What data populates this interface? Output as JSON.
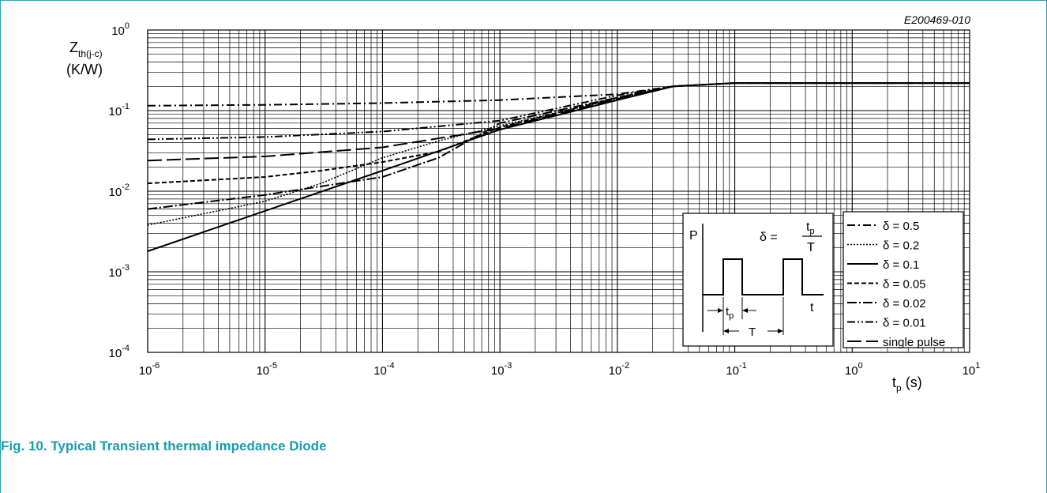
{
  "caption": "Fig. 10. Typical Transient thermal impedance Diode",
  "accent_color": "#1a9bb0",
  "chart_data": {
    "type": "line",
    "figure_id": "E200469-010",
    "ylabel_main": "Z",
    "ylabel_sub": "th(j-c)",
    "yunit": "(K/W)",
    "xlabel_main": "t",
    "xlabel_sub": "p",
    "xunit": " (s)",
    "xscale": "log",
    "yscale": "log",
    "xlim": [
      1e-06,
      10
    ],
    "ylim": [
      0.0001,
      1
    ],
    "grid": true,
    "x_ticks": [
      {
        "base": "10",
        "exp": "-6"
      },
      {
        "base": "10",
        "exp": "-5"
      },
      {
        "base": "10",
        "exp": "-4"
      },
      {
        "base": "10",
        "exp": "-3"
      },
      {
        "base": "10",
        "exp": "-2"
      },
      {
        "base": "10",
        "exp": "-1"
      },
      {
        "base": "10",
        "exp": "0"
      },
      {
        "base": "10",
        "exp": "1"
      }
    ],
    "y_ticks": [
      {
        "base": "10",
        "exp": "-4"
      },
      {
        "base": "10",
        "exp": "-3"
      },
      {
        "base": "10",
        "exp": "-2"
      },
      {
        "base": "10",
        "exp": "-1"
      },
      {
        "base": "10",
        "exp": "0"
      }
    ],
    "legend_position": "bottom-right",
    "series": [
      {
        "name": "δ = 0.5",
        "dash": "10,4,2,4",
        "width": 2,
        "x": [
          1e-06,
          1e-05,
          0.0001,
          0.001,
          0.01,
          0.03,
          0.1,
          1,
          10
        ],
        "y": [
          0.115,
          0.118,
          0.124,
          0.135,
          0.16,
          0.2,
          0.22,
          0.22,
          0.22
        ]
      },
      {
        "name": "δ = 0.2",
        "dash": "2,2",
        "width": 1.6,
        "x": [
          1e-06,
          1e-05,
          3e-05,
          0.0001,
          0.0003,
          0.001,
          0.01,
          0.03,
          0.1,
          1,
          10
        ],
        "y": [
          0.0038,
          0.0075,
          0.0125,
          0.026,
          0.042,
          0.065,
          0.14,
          0.2,
          0.22,
          0.22,
          0.22
        ]
      },
      {
        "name": "δ = 0.1",
        "dash": "",
        "width": 2,
        "x": [
          1e-06,
          1e-05,
          0.0001,
          0.001,
          0.01,
          0.03,
          0.1,
          1,
          10
        ],
        "y": [
          0.0018,
          0.0057,
          0.018,
          0.058,
          0.135,
          0.2,
          0.22,
          0.22,
          0.22
        ]
      },
      {
        "name": "δ = 0.05",
        "dash": "6,3",
        "width": 2,
        "x": [
          1e-06,
          1e-05,
          3e-05,
          0.0001,
          0.0003,
          0.001,
          0.01,
          0.03,
          0.1,
          1,
          10
        ],
        "y": [
          0.0125,
          0.015,
          0.018,
          0.023,
          0.031,
          0.062,
          0.145,
          0.2,
          0.22,
          0.22,
          0.22
        ]
      },
      {
        "name": "δ = 0.02",
        "dash": "12,3,2,3",
        "width": 2,
        "x": [
          1e-06,
          1e-05,
          0.0001,
          0.0003,
          0.001,
          0.01,
          0.03,
          0.1,
          1,
          10
        ],
        "y": [
          0.006,
          0.009,
          0.015,
          0.026,
          0.07,
          0.145,
          0.2,
          0.22,
          0.22,
          0.22
        ]
      },
      {
        "name": "δ = 0.01",
        "dash": "10,3,2,3,2,3",
        "width": 2,
        "x": [
          1e-06,
          1e-05,
          0.0001,
          0.001,
          0.01,
          0.03,
          0.1,
          1,
          10
        ],
        "y": [
          0.044,
          0.047,
          0.055,
          0.075,
          0.155,
          0.2,
          0.22,
          0.22,
          0.22
        ]
      },
      {
        "name": "single pulse",
        "dash": "18,6",
        "width": 2,
        "x": [
          1e-06,
          1e-05,
          0.0001,
          0.001,
          0.01,
          0.03,
          0.1,
          1,
          10
        ],
        "y": [
          0.024,
          0.027,
          0.035,
          0.06,
          0.14,
          0.2,
          0.22,
          0.22,
          0.22
        ]
      }
    ],
    "inset": {
      "p_label": "P",
      "t_label": "t",
      "tp_main": "t",
      "tp_sub": "p",
      "period_label": "T",
      "formula_lhs": "δ = ",
      "formula_num_main": "t",
      "formula_num_sub": "p",
      "formula_den": "T"
    }
  }
}
